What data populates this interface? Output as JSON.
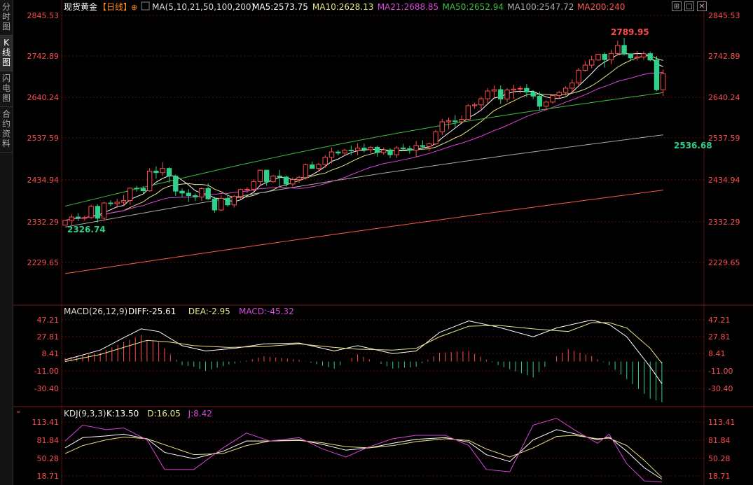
{
  "sidebar": {
    "tabs": [
      {
        "label": "分时图",
        "active": false
      },
      {
        "label": "K线图",
        "active": true
      },
      {
        "label": "闪电图",
        "active": false
      },
      {
        "label": "合约资料",
        "active": false
      }
    ]
  },
  "main_header": {
    "title": "现货黄金",
    "period": "【日线】",
    "ma_spec": "MA(5,10,21,50,100,200)",
    "items": [
      {
        "text": "MA5:2573.75",
        "color": "#ffffff"
      },
      {
        "text": "MA10:2628.13",
        "color": "#e6e68a"
      },
      {
        "text": "MA21:2688.85",
        "color": "#d946d9"
      },
      {
        "text": "MA50:2652.94",
        "color": "#3fbf3f"
      },
      {
        "text": "MA100:2547.72",
        "color": "#aaaaaa"
      },
      {
        "text": "MA200:240",
        "color": "#ff5a4a"
      }
    ]
  },
  "macd_header": {
    "name": "MACD(26,12,9)",
    "items": [
      {
        "text": "DIFF:-25.61",
        "color": "#ffffff"
      },
      {
        "text": "DEA:-2.95",
        "color": "#e6e68a"
      },
      {
        "text": "MACD:-45.32",
        "color": "#d946d9"
      }
    ]
  },
  "kdj_header": {
    "name": "KDJ(9,3,3)",
    "items": [
      {
        "text": "K:13.50",
        "color": "#ffffff"
      },
      {
        "text": "D:16.05",
        "color": "#e6e68a"
      },
      {
        "text": "J:8.42",
        "color": "#d946d9"
      }
    ]
  },
  "annotations": {
    "high": "2789.95",
    "low_recent": "2536.68",
    "low_start": "2326.74"
  },
  "colors": {
    "up": "#ff4d4d",
    "down": "#2fd08a",
    "axis": "#ff4d4d",
    "grid": "#5a1010"
  },
  "chart_data": [
    {
      "type": "candlestick",
      "title": "现货黄金【日线】",
      "y_ticks": [
        "2845.53",
        "2742.89",
        "2640.24",
        "2537.59",
        "2434.94",
        "2332.29",
        "2229.65"
      ],
      "ylim": [
        2193,
        2860
      ],
      "count": 93,
      "candles": [
        [
          2322.5,
          2334.4,
          2322.5,
          2334.4
        ],
        [
          2334.4,
          2349.3,
          2322.5,
          2342.9
        ],
        [
          2342.9,
          2352.7,
          2332.5,
          2341.0
        ],
        [
          2341.0,
          2345.8,
          2333.9,
          2341.6
        ],
        [
          2341.6,
          2373.3,
          2338.2,
          2369.6
        ],
        [
          2369.6,
          2374.5,
          2329.3,
          2339.8
        ],
        [
          2339.8,
          2381.1,
          2334.3,
          2377.9
        ],
        [
          2377.9,
          2384.5,
          2369.8,
          2376.4
        ],
        [
          2376.4,
          2388.1,
          2365.3,
          2379.8
        ],
        [
          2379.8,
          2398.1,
          2369.9,
          2384.1
        ],
        [
          2384.1,
          2416.7,
          2373.5,
          2414.8
        ],
        [
          2414.8,
          2420.8,
          2406.2,
          2413.7
        ],
        [
          2413.7,
          2419.9,
          2399.5,
          2408.3
        ],
        [
          2408.3,
          2464.8,
          2405.4,
          2457.4
        ],
        [
          2457.4,
          2469.3,
          2438.5,
          2453.5
        ],
        [
          2453.5,
          2479.9,
          2445.4,
          2464.0
        ],
        [
          2464.0,
          2467.0,
          2428.4,
          2444.7
        ],
        [
          2444.7,
          2448.6,
          2395.7,
          2407.4
        ],
        [
          2407.4,
          2413.8,
          2392.0,
          2402.5
        ],
        [
          2402.5,
          2412.5,
          2380.4,
          2396.2
        ],
        [
          2396.2,
          2401.2,
          2382.6,
          2392.7
        ],
        [
          2392.7,
          2416.3,
          2383.5,
          2413.7
        ],
        [
          2413.7,
          2427.0,
          2386.2,
          2388.2
        ],
        [
          2388.2,
          2393.4,
          2353.7,
          2360.4
        ],
        [
          2360.4,
          2396.6,
          2357.6,
          2389.4
        ],
        [
          2389.4,
          2398.7,
          2368.8,
          2373.1
        ],
        [
          2373.1,
          2397.8,
          2366.2,
          2394.2
        ],
        [
          2394.2,
          2413.5,
          2386.7,
          2411.5
        ],
        [
          2411.5,
          2417.7,
          2402.8,
          2412.1
        ],
        [
          2412.1,
          2436.9,
          2405.4,
          2431.3
        ],
        [
          2431.3,
          2461.7,
          2420.4,
          2459.7
        ],
        [
          2459.7,
          2460.6,
          2421.1,
          2430.8
        ],
        [
          2430.8,
          2447.8,
          2428.1,
          2445.0
        ],
        [
          2445.0,
          2460.6,
          2418.7,
          2442.6
        ],
        [
          2442.6,
          2445.9,
          2418.9,
          2425.2
        ],
        [
          2425.2,
          2441.4,
          2419.0,
          2436.1
        ],
        [
          2436.1,
          2445.9,
          2428.4,
          2441.8
        ],
        [
          2441.8,
          2476.2,
          2436.0,
          2472.9
        ],
        [
          2472.9,
          2481.1,
          2463.8,
          2464.1
        ],
        [
          2464.1,
          2477.6,
          2456.5,
          2473.8
        ],
        [
          2473.8,
          2497.1,
          2465.4,
          2491.8
        ],
        [
          2491.8,
          2516.0,
          2476.3,
          2505.1
        ],
        [
          2505.1,
          2510.0,
          2497.0,
          2502.3
        ],
        [
          2502.3,
          2513.3,
          2494.8,
          2509.5
        ],
        [
          2509.5,
          2521.4,
          2497.5,
          2508.5
        ],
        [
          2508.5,
          2526.7,
          2496.3,
          2514.8
        ],
        [
          2514.8,
          2526.0,
          2504.2,
          2510.8
        ],
        [
          2510.8,
          2519.5,
          2501.9,
          2516.8
        ],
        [
          2516.8,
          2520.2,
          2493.5,
          2503.6
        ],
        [
          2503.6,
          2516.3,
          2498.1,
          2510.2
        ],
        [
          2510.2,
          2514.2,
          2489.9,
          2498.2
        ],
        [
          2498.2,
          2519.5,
          2490.2,
          2515.2
        ],
        [
          2515.2,
          2525.3,
          2506.8,
          2513.3
        ],
        [
          2513.3,
          2520.4,
          2500.8,
          2509.4
        ],
        [
          2509.4,
          2532.2,
          2492.6,
          2521.2
        ],
        [
          2521.2,
          2534.1,
          2513.2,
          2518.8
        ],
        [
          2518.8,
          2528.6,
          2506.7,
          2525.3
        ],
        [
          2525.3,
          2560.0,
          2522.7,
          2555.4
        ],
        [
          2555.4,
          2587.7,
          2547.2,
          2580.2
        ],
        [
          2580.2,
          2591.1,
          2561.6,
          2582.6
        ],
        [
          2582.6,
          2596.9,
          2567.5,
          2580.5
        ],
        [
          2580.5,
          2596.3,
          2577.7,
          2586.5
        ],
        [
          2586.5,
          2624.7,
          2584.9,
          2620.4
        ],
        [
          2620.4,
          2628.1,
          2612.5,
          2622.5
        ],
        [
          2622.5,
          2642.8,
          2606.2,
          2637.8
        ],
        [
          2637.8,
          2664.1,
          2625.1,
          2657.0
        ],
        [
          2657.0,
          2670.5,
          2641.9,
          2660.6
        ],
        [
          2660.6,
          2670.8,
          2624.7,
          2637.0
        ],
        [
          2637.0,
          2664.5,
          2628.7,
          2659.5
        ],
        [
          2659.5,
          2672.8,
          2637.8,
          2661.9
        ],
        [
          2661.9,
          2669.7,
          2651.3,
          2663.6
        ],
        [
          2663.6,
          2674.7,
          2641.3,
          2654.4
        ],
        [
          2654.4,
          2659.6,
          2636.6,
          2644.3
        ],
        [
          2644.3,
          2655.3,
          2608.7,
          2619.0
        ],
        [
          2619.0,
          2633.6,
          2610.1,
          2629.4
        ],
        [
          2629.4,
          2648.4,
          2625.1,
          2645.8
        ],
        [
          2645.8,
          2657.4,
          2637.9,
          2653.5
        ],
        [
          2653.5,
          2668.8,
          2645.7,
          2664.2
        ],
        [
          2664.2,
          2686.2,
          2650.8,
          2677.0
        ],
        [
          2677.0,
          2714.7,
          2669.7,
          2708.7
        ],
        [
          2708.7,
          2731.6,
          2705.4,
          2721.5
        ],
        [
          2721.5,
          2745.3,
          2713.8,
          2734.4
        ],
        [
          2734.4,
          2749.1,
          2732.2,
          2748.7
        ],
        [
          2748.7,
          2753.4,
          2715.5,
          2735.2
        ],
        [
          2735.2,
          2760.2,
          2724.0,
          2750.7
        ],
        [
          2750.7,
          2783.1,
          2745.5,
          2770.7
        ],
        [
          2770.7,
          2789.9,
          2745.6,
          2749.1
        ],
        [
          2749.1,
          2751.0,
          2731.9,
          2739.6
        ],
        [
          2739.6,
          2756.6,
          2732.9,
          2741.8
        ],
        [
          2741.8,
          2755.5,
          2734.4,
          2750.2
        ],
        [
          2750.2,
          2755.1,
          2731.0,
          2734.3
        ],
        [
          2734.3,
          2744.1,
          2656.6,
          2660.2
        ],
        [
          2660.2,
          2710.9,
          2644.8,
          2700.1
        ]
      ]
    },
    {
      "type": "line",
      "title": "MACD(26,12,9)",
      "y_ticks": [
        "47.21",
        "27.81",
        "8.41",
        "-11.00",
        "-30.40"
      ],
      "ylim": [
        -50,
        57
      ],
      "series": [
        {
          "name": "DIFF",
          "points": [
            [
              0,
              2
            ],
            [
              6,
              13
            ],
            [
              10,
              27
            ],
            [
              13,
              37
            ],
            [
              16,
              34
            ],
            [
              20,
              18
            ],
            [
              24,
              12
            ],
            [
              29,
              15
            ],
            [
              34,
              20
            ],
            [
              40,
              21
            ],
            [
              46,
              12
            ],
            [
              50,
              18
            ],
            [
              56,
              9
            ],
            [
              60,
              12
            ],
            [
              64,
              33
            ],
            [
              69,
              46
            ],
            [
              74,
              39
            ],
            [
              80,
              28
            ],
            [
              84,
              38
            ],
            [
              90,
              47
            ],
            [
              93,
              42
            ],
            [
              96,
              28
            ],
            [
              100,
              -6
            ],
            [
              102,
              -25
            ]
          ]
        },
        {
          "name": "DEA",
          "points": [
            [
              0,
              0
            ],
            [
              6,
              8
            ],
            [
              10,
              16
            ],
            [
              14,
              24
            ],
            [
              18,
              22
            ],
            [
              22,
              18
            ],
            [
              28,
              16
            ],
            [
              34,
              17
            ],
            [
              40,
              20
            ],
            [
              46,
              16
            ],
            [
              50,
              14
            ],
            [
              56,
              13
            ],
            [
              60,
              15
            ],
            [
              64,
              28
            ],
            [
              69,
              40
            ],
            [
              74,
              41
            ],
            [
              80,
              37
            ],
            [
              86,
              34
            ],
            [
              90,
              44
            ],
            [
              93,
              44
            ],
            [
              96,
              38
            ],
            [
              100,
              15
            ],
            [
              102,
              -2
            ]
          ]
        }
      ]
    },
    {
      "type": "line",
      "title": "KDJ(9,3,3)",
      "y_ticks": [
        "113.41",
        "81.84",
        "50.28",
        "18.71"
      ],
      "ylim": [
        10,
        122
      ],
      "series": [
        {
          "name": "K",
          "points": [
            [
              0,
              68
            ],
            [
              3,
              86
            ],
            [
              7,
              89
            ],
            [
              10,
              92
            ],
            [
              14,
              84
            ],
            [
              17,
              60
            ],
            [
              22,
              49
            ],
            [
              27,
              62
            ],
            [
              31,
              80
            ],
            [
              35,
              80
            ],
            [
              40,
              82
            ],
            [
              44,
              74
            ],
            [
              48,
              64
            ],
            [
              52,
              68
            ],
            [
              56,
              76
            ],
            [
              60,
              83
            ],
            [
              65,
              86
            ],
            [
              69,
              78
            ],
            [
              72,
              56
            ],
            [
              76,
              44
            ],
            [
              80,
              82
            ],
            [
              84,
              100
            ],
            [
              87,
              93
            ],
            [
              91,
              82
            ],
            [
              93,
              87
            ],
            [
              96,
              62
            ],
            [
              99,
              33
            ],
            [
              102,
              13
            ]
          ]
        },
        {
          "name": "D",
          "points": [
            [
              0,
              58
            ],
            [
              3,
              72
            ],
            [
              7,
              82
            ],
            [
              10,
              87
            ],
            [
              14,
              84
            ],
            [
              18,
              70
            ],
            [
              22,
              56
            ],
            [
              27,
              58
            ],
            [
              31,
              72
            ],
            [
              35,
              80
            ],
            [
              40,
              81
            ],
            [
              44,
              77
            ],
            [
              48,
              70
            ],
            [
              52,
              68
            ],
            [
              56,
              72
            ],
            [
              60,
              79
            ],
            [
              65,
              84
            ],
            [
              69,
              81
            ],
            [
              72,
              66
            ],
            [
              76,
              52
            ],
            [
              80,
              68
            ],
            [
              84,
              88
            ],
            [
              87,
              90
            ],
            [
              91,
              84
            ],
            [
              93,
              85
            ],
            [
              96,
              72
            ],
            [
              99,
              46
            ],
            [
              102,
              16
            ]
          ]
        },
        {
          "name": "J",
          "points": [
            [
              0,
              80
            ],
            [
              3,
              108
            ],
            [
              7,
              100
            ],
            [
              10,
              103
            ],
            [
              14,
              82
            ],
            [
              17,
              30
            ],
            [
              22,
              30
            ],
            [
              27,
              68
            ],
            [
              31,
              94
            ],
            [
              35,
              80
            ],
            [
              40,
              86
            ],
            [
              44,
              66
            ],
            [
              48,
              52
            ],
            [
              52,
              70
            ],
            [
              56,
              84
            ],
            [
              60,
              90
            ],
            [
              65,
              90
            ],
            [
              69,
              72
            ],
            [
              72,
              30
            ],
            [
              76,
              26
            ],
            [
              80,
              108
            ],
            [
              84,
              120
            ],
            [
              87,
              100
            ],
            [
              91,
              76
            ],
            [
              93,
              92
            ],
            [
              96,
              40
            ],
            [
              99,
              10
            ],
            [
              102,
              8
            ]
          ]
        }
      ]
    }
  ]
}
